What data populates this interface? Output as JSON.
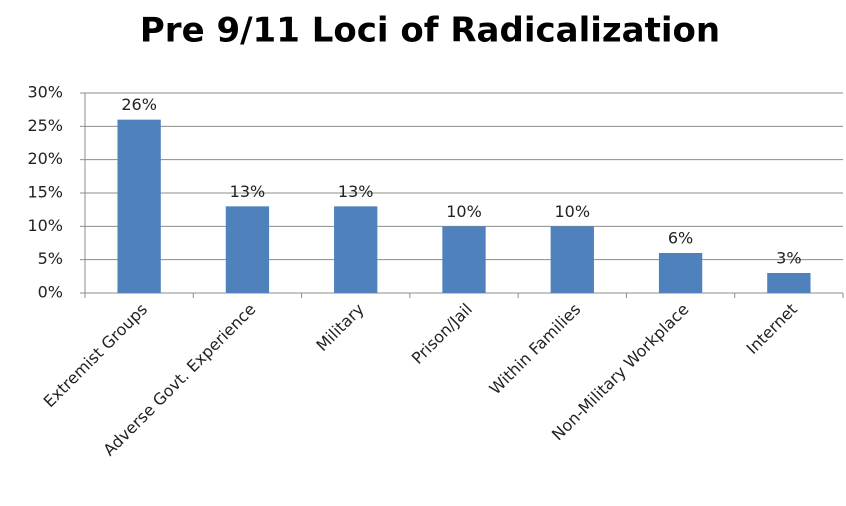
{
  "chart_data": {
    "type": "bar",
    "title": "Pre 9/11 Loci of Radicalization",
    "categories": [
      "Extremist Groups",
      "Adverse Govt. Experience",
      "Military",
      "Prison/Jail",
      "Within Families",
      "Non-Military Workplace",
      "Internet"
    ],
    "values": [
      26,
      13,
      13,
      10,
      10,
      6,
      3
    ],
    "value_labels": [
      "26%",
      "13%",
      "13%",
      "10%",
      "10%",
      "6%",
      "3%"
    ],
    "color": "#4f81bd",
    "ylim": [
      0,
      30
    ],
    "yticks": [
      {
        "value": 0,
        "label": "0%"
      },
      {
        "value": 5,
        "label": "5%"
      },
      {
        "value": 10,
        "label": "10%"
      },
      {
        "value": 15,
        "label": "15%"
      },
      {
        "value": 20,
        "label": "20%"
      },
      {
        "value": 25,
        "label": "25%"
      },
      {
        "value": 30,
        "label": "30%"
      }
    ],
    "grid": true
  }
}
